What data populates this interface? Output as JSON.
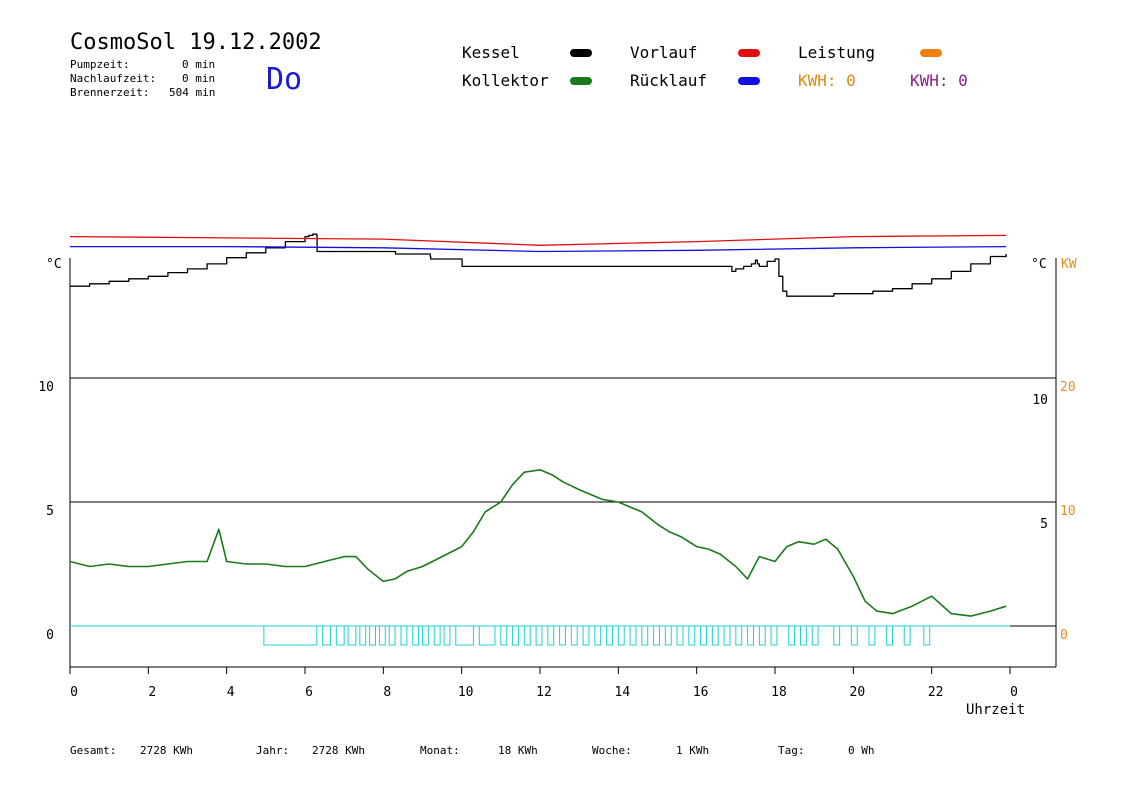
{
  "header": {
    "title": "CosmoSol 19.12.2002",
    "day": "Do",
    "stats": [
      {
        "label": "Pumpzeit:",
        "value": "0 min"
      },
      {
        "label": "Nachlaufzeit:",
        "value": "0 min"
      },
      {
        "label": "Brennerzeit:",
        "value": "504 min"
      }
    ]
  },
  "legend": {
    "kessel": "Kessel",
    "vorlauf": "Vorlauf",
    "leistung": "Leistung",
    "kollektor": "Kollektor",
    "ruecklauf": "Rücklauf",
    "kwh1": "KWH: 0",
    "kwh2": "KWH: 0"
  },
  "colors": {
    "kessel": "#000000",
    "kollektor": "#1a7a1a",
    "vorlauf": "#e01010",
    "ruecklauf": "#1010e0",
    "leistung": "#f08010",
    "kwh1": "#e08a10",
    "kwh2": "#8a208a",
    "pump": "#20d0d0",
    "kw_axis": "#e09020"
  },
  "footer": [
    {
      "label": "Gesamt:",
      "value": "2728 KWh"
    },
    {
      "label": "Jahr:",
      "value": "2728 KWh"
    },
    {
      "label": "Monat:",
      "value": "18 KWh"
    },
    {
      "label": "Woche:",
      "value": "1 KWh"
    },
    {
      "label": "Tag:",
      "value": "0 Wh"
    }
  ],
  "chart_data": {
    "type": "line",
    "xlabel": "Uhrzeit",
    "left_unit": "°C",
    "right_unit": "°C",
    "right_unit2": "KW",
    "x_ticks": [
      "0",
      "2",
      "4",
      "6",
      "8",
      "10",
      "12",
      "14",
      "16",
      "18",
      "20",
      "22",
      "0"
    ],
    "left_ticks": [
      "0",
      "5",
      "10"
    ],
    "right_ticks_c": [
      "5",
      "10"
    ],
    "right_ticks_kw": [
      "0",
      "10",
      "20"
    ],
    "xlim": [
      0,
      24
    ],
    "ylim_left": [
      -1.6,
      15
    ],
    "series": [
      {
        "name": "Kollektor",
        "x": [
          0,
          0.5,
          1,
          1.5,
          2,
          2.5,
          3,
          3.5,
          3.8,
          4,
          4.5,
          5,
          5.5,
          6,
          6.5,
          7,
          7.3,
          7.6,
          8,
          8.3,
          8.6,
          9,
          9.5,
          10,
          10.3,
          10.6,
          11,
          11.3,
          11.6,
          12,
          12.3,
          12.6,
          13,
          13.3,
          13.6,
          14,
          14.3,
          14.6,
          15,
          15.3,
          15.6,
          16,
          16.3,
          16.6,
          17,
          17.3,
          17.6,
          18,
          18.3,
          18.6,
          19,
          19.3,
          19.6,
          20,
          20.3,
          20.6,
          21,
          21.5,
          22,
          22.5,
          23,
          23.5,
          23.9
        ],
        "y": [
          2.6,
          2.4,
          2.5,
          2.4,
          2.4,
          2.5,
          2.6,
          2.6,
          3.9,
          2.6,
          2.5,
          2.5,
          2.4,
          2.4,
          2.6,
          2.8,
          2.8,
          2.3,
          1.8,
          1.9,
          2.2,
          2.4,
          2.8,
          3.2,
          3.8,
          4.6,
          5.0,
          5.7,
          6.2,
          6.3,
          6.1,
          5.8,
          5.5,
          5.3,
          5.1,
          5.0,
          4.8,
          4.6,
          4.1,
          3.8,
          3.6,
          3.2,
          3.1,
          2.9,
          2.4,
          1.9,
          2.8,
          2.6,
          3.2,
          3.4,
          3.3,
          3.5,
          3.1,
          2.0,
          1.0,
          0.6,
          0.5,
          0.8,
          1.2,
          0.5,
          0.4,
          0.6,
          0.8
        ]
      },
      {
        "name": "Kessel",
        "x": [
          0,
          0.5,
          1,
          1.5,
          2,
          2.5,
          3,
          3.5,
          4,
          4.5,
          5,
          5.5,
          6,
          6.1,
          6.2,
          6.3,
          6.31,
          7,
          8,
          8.3,
          8.31,
          9,
          9.2,
          9.21,
          10,
          10.01,
          11,
          12,
          13,
          14,
          15,
          16,
          16.7,
          16.9,
          17,
          17.2,
          17.4,
          17.5,
          17.55,
          17.6,
          17.8,
          18,
          18.1,
          18.2,
          18.3,
          18.5,
          19,
          19.5,
          20,
          20.5,
          21,
          21.5,
          22,
          22.5,
          23,
          23.5,
          23.9
        ],
        "y": [
          13.7,
          13.8,
          13.9,
          14.0,
          14.1,
          14.25,
          14.4,
          14.6,
          14.85,
          15.05,
          15.25,
          15.5,
          15.7,
          15.75,
          15.8,
          15.75,
          15.1,
          15.1,
          15.1,
          15.1,
          15.0,
          15.0,
          14.9,
          14.8,
          14.8,
          14.5,
          14.5,
          14.5,
          14.5,
          14.5,
          14.5,
          14.5,
          14.5,
          14.3,
          14.4,
          14.5,
          14.6,
          14.75,
          14.6,
          14.5,
          14.7,
          14.8,
          14.1,
          13.5,
          13.3,
          13.3,
          13.3,
          13.4,
          13.4,
          13.5,
          13.6,
          13.8,
          14.0,
          14.3,
          14.6,
          14.9,
          15.0
        ]
      },
      {
        "name": "Vorlauf",
        "x": [
          0,
          4,
          8,
          12,
          16,
          20,
          23.9
        ],
        "y": [
          15.7,
          15.65,
          15.6,
          15.35,
          15.5,
          15.7,
          15.75
        ]
      },
      {
        "name": "Rücklauf",
        "x": [
          0,
          4,
          8,
          12,
          16,
          20,
          23.9
        ],
        "y": [
          15.3,
          15.3,
          15.25,
          15.1,
          15.15,
          15.25,
          15.3
        ]
      }
    ],
    "pump_pulses": [
      [
        4.95,
        6.3
      ],
      [
        6.45,
        6.65
      ],
      [
        6.8,
        7.0
      ],
      [
        7.1,
        7.3
      ],
      [
        7.4,
        7.55
      ],
      [
        7.65,
        7.8
      ],
      [
        7.9,
        8.05
      ],
      [
        8.15,
        8.3
      ],
      [
        8.45,
        8.6
      ],
      [
        8.75,
        8.9
      ],
      [
        9.0,
        9.15
      ],
      [
        9.3,
        9.45
      ],
      [
        9.55,
        9.7
      ],
      [
        9.85,
        10.3
      ],
      [
        10.45,
        10.85
      ],
      [
        11.0,
        11.15
      ],
      [
        11.3,
        11.45
      ],
      [
        11.6,
        11.75
      ],
      [
        11.9,
        12.05
      ],
      [
        12.2,
        12.35
      ],
      [
        12.5,
        12.65
      ],
      [
        12.8,
        12.95
      ],
      [
        13.1,
        13.25
      ],
      [
        13.4,
        13.55
      ],
      [
        13.7,
        13.85
      ],
      [
        14.0,
        14.15
      ],
      [
        14.3,
        14.45
      ],
      [
        14.6,
        14.75
      ],
      [
        14.9,
        15.05
      ],
      [
        15.2,
        15.35
      ],
      [
        15.5,
        15.65
      ],
      [
        15.8,
        15.95
      ],
      [
        16.1,
        16.25
      ],
      [
        16.4,
        16.55
      ],
      [
        16.7,
        16.85
      ],
      [
        17.0,
        17.15
      ],
      [
        17.3,
        17.45
      ],
      [
        17.6,
        17.75
      ],
      [
        17.9,
        18.05
      ],
      [
        18.35,
        18.5
      ],
      [
        18.65,
        18.8
      ],
      [
        18.95,
        19.1
      ],
      [
        19.5,
        19.65
      ],
      [
        19.95,
        20.1
      ],
      [
        20.4,
        20.55
      ],
      [
        20.85,
        21.0
      ],
      [
        21.3,
        21.45
      ],
      [
        21.8,
        21.95
      ]
    ]
  }
}
